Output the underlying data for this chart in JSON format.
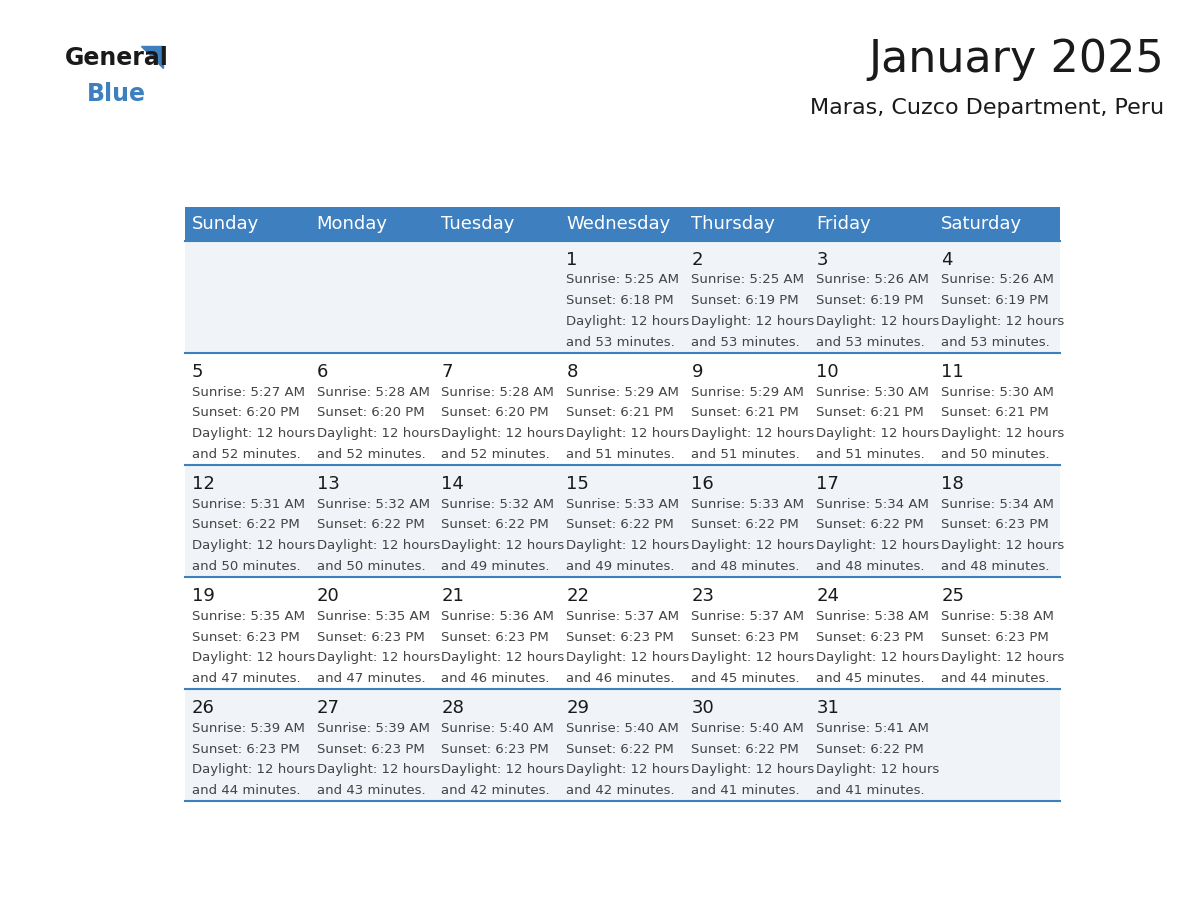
{
  "title": "January 2025",
  "subtitle": "Maras, Cuzco Department, Peru",
  "header_bg_color": "#3d7fbf",
  "header_text_color": "#ffffff",
  "row_bg_color_odd": "#f0f4f8",
  "row_bg_color_even": "#ffffff",
  "separator_color": "#3d7fbf",
  "day_headers": [
    "Sunday",
    "Monday",
    "Tuesday",
    "Wednesday",
    "Thursday",
    "Friday",
    "Saturday"
  ],
  "calendar_data": [
    [
      {
        "day": "",
        "sunrise": "",
        "sunset": "",
        "daylight_h": "",
        "daylight_m": ""
      },
      {
        "day": "",
        "sunrise": "",
        "sunset": "",
        "daylight_h": "",
        "daylight_m": ""
      },
      {
        "day": "",
        "sunrise": "",
        "sunset": "",
        "daylight_h": "",
        "daylight_m": ""
      },
      {
        "day": "1",
        "sunrise": "5:25 AM",
        "sunset": "6:18 PM",
        "daylight_h": "12",
        "daylight_m": "53"
      },
      {
        "day": "2",
        "sunrise": "5:25 AM",
        "sunset": "6:19 PM",
        "daylight_h": "12",
        "daylight_m": "53"
      },
      {
        "day": "3",
        "sunrise": "5:26 AM",
        "sunset": "6:19 PM",
        "daylight_h": "12",
        "daylight_m": "53"
      },
      {
        "day": "4",
        "sunrise": "5:26 AM",
        "sunset": "6:19 PM",
        "daylight_h": "12",
        "daylight_m": "53"
      }
    ],
    [
      {
        "day": "5",
        "sunrise": "5:27 AM",
        "sunset": "6:20 PM",
        "daylight_h": "12",
        "daylight_m": "52"
      },
      {
        "day": "6",
        "sunrise": "5:28 AM",
        "sunset": "6:20 PM",
        "daylight_h": "12",
        "daylight_m": "52"
      },
      {
        "day": "7",
        "sunrise": "5:28 AM",
        "sunset": "6:20 PM",
        "daylight_h": "12",
        "daylight_m": "52"
      },
      {
        "day": "8",
        "sunrise": "5:29 AM",
        "sunset": "6:21 PM",
        "daylight_h": "12",
        "daylight_m": "51"
      },
      {
        "day": "9",
        "sunrise": "5:29 AM",
        "sunset": "6:21 PM",
        "daylight_h": "12",
        "daylight_m": "51"
      },
      {
        "day": "10",
        "sunrise": "5:30 AM",
        "sunset": "6:21 PM",
        "daylight_h": "12",
        "daylight_m": "51"
      },
      {
        "day": "11",
        "sunrise": "5:30 AM",
        "sunset": "6:21 PM",
        "daylight_h": "12",
        "daylight_m": "50"
      }
    ],
    [
      {
        "day": "12",
        "sunrise": "5:31 AM",
        "sunset": "6:22 PM",
        "daylight_h": "12",
        "daylight_m": "50"
      },
      {
        "day": "13",
        "sunrise": "5:32 AM",
        "sunset": "6:22 PM",
        "daylight_h": "12",
        "daylight_m": "50"
      },
      {
        "day": "14",
        "sunrise": "5:32 AM",
        "sunset": "6:22 PM",
        "daylight_h": "12",
        "daylight_m": "49"
      },
      {
        "day": "15",
        "sunrise": "5:33 AM",
        "sunset": "6:22 PM",
        "daylight_h": "12",
        "daylight_m": "49"
      },
      {
        "day": "16",
        "sunrise": "5:33 AM",
        "sunset": "6:22 PM",
        "daylight_h": "12",
        "daylight_m": "48"
      },
      {
        "day": "17",
        "sunrise": "5:34 AM",
        "sunset": "6:22 PM",
        "daylight_h": "12",
        "daylight_m": "48"
      },
      {
        "day": "18",
        "sunrise": "5:34 AM",
        "sunset": "6:23 PM",
        "daylight_h": "12",
        "daylight_m": "48"
      }
    ],
    [
      {
        "day": "19",
        "sunrise": "5:35 AM",
        "sunset": "6:23 PM",
        "daylight_h": "12",
        "daylight_m": "47"
      },
      {
        "day": "20",
        "sunrise": "5:35 AM",
        "sunset": "6:23 PM",
        "daylight_h": "12",
        "daylight_m": "47"
      },
      {
        "day": "21",
        "sunrise": "5:36 AM",
        "sunset": "6:23 PM",
        "daylight_h": "12",
        "daylight_m": "46"
      },
      {
        "day": "22",
        "sunrise": "5:37 AM",
        "sunset": "6:23 PM",
        "daylight_h": "12",
        "daylight_m": "46"
      },
      {
        "day": "23",
        "sunrise": "5:37 AM",
        "sunset": "6:23 PM",
        "daylight_h": "12",
        "daylight_m": "45"
      },
      {
        "day": "24",
        "sunrise": "5:38 AM",
        "sunset": "6:23 PM",
        "daylight_h": "12",
        "daylight_m": "45"
      },
      {
        "day": "25",
        "sunrise": "5:38 AM",
        "sunset": "6:23 PM",
        "daylight_h": "12",
        "daylight_m": "44"
      }
    ],
    [
      {
        "day": "26",
        "sunrise": "5:39 AM",
        "sunset": "6:23 PM",
        "daylight_h": "12",
        "daylight_m": "44"
      },
      {
        "day": "27",
        "sunrise": "5:39 AM",
        "sunset": "6:23 PM",
        "daylight_h": "12",
        "daylight_m": "43"
      },
      {
        "day": "28",
        "sunrise": "5:40 AM",
        "sunset": "6:23 PM",
        "daylight_h": "12",
        "daylight_m": "42"
      },
      {
        "day": "29",
        "sunrise": "5:40 AM",
        "sunset": "6:22 PM",
        "daylight_h": "12",
        "daylight_m": "42"
      },
      {
        "day": "30",
        "sunrise": "5:40 AM",
        "sunset": "6:22 PM",
        "daylight_h": "12",
        "daylight_m": "41"
      },
      {
        "day": "31",
        "sunrise": "5:41 AM",
        "sunset": "6:22 PM",
        "daylight_h": "12",
        "daylight_m": "41"
      },
      {
        "day": "",
        "sunrise": "",
        "sunset": "",
        "daylight_h": "",
        "daylight_m": ""
      }
    ]
  ],
  "logo_text_general": "General",
  "logo_text_blue": "Blue",
  "logo_color_general": "#1a1a1a",
  "logo_color_blue": "#3d7fbf",
  "title_fontsize": 32,
  "subtitle_fontsize": 16,
  "day_header_fontsize": 13,
  "day_num_fontsize": 13,
  "cell_text_fontsize": 9.5,
  "bg_color": "#ffffff"
}
